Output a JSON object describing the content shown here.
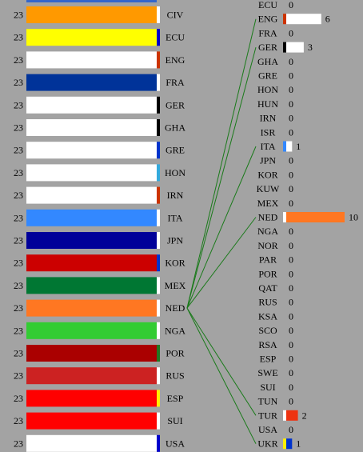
{
  "chart_data": {
    "type": "bar",
    "left_panel": {
      "value": 23,
      "rows": [
        {
          "label": "CIV",
          "fill": "#ff9900",
          "stripe": "#ffffff"
        },
        {
          "label": "ECU",
          "fill": "#ffff00",
          "stripe": "#0000cc"
        },
        {
          "label": "ENG",
          "fill": "#ffffff",
          "stripe": "#cc3300"
        },
        {
          "label": "FRA",
          "fill": "#003399",
          "stripe": "#ffffff"
        },
        {
          "label": "GER",
          "fill": "#ffffff",
          "stripe": "#000000"
        },
        {
          "label": "GHA",
          "fill": "#ffffff",
          "stripe": "#000000"
        },
        {
          "label": "GRE",
          "fill": "#ffffff",
          "stripe": "#0033cc"
        },
        {
          "label": "HON",
          "fill": "#ffffff",
          "stripe": "#33aadd"
        },
        {
          "label": "IRN",
          "fill": "#ffffff",
          "stripe": "#cc3300"
        },
        {
          "label": "ITA",
          "fill": "#3388ff",
          "stripe": "#ffffff"
        },
        {
          "label": "JPN",
          "fill": "#000099",
          "stripe": "#ffffff"
        },
        {
          "label": "KOR",
          "fill": "#cc0000",
          "stripe": "#0033cc"
        },
        {
          "label": "MEX",
          "fill": "#007733",
          "stripe": "#ffffff"
        },
        {
          "label": "NED",
          "fill": "#ff7722",
          "stripe": "#ffffff"
        },
        {
          "label": "NGA",
          "fill": "#33cc33",
          "stripe": "#ffffff"
        },
        {
          "label": "POR",
          "fill": "#aa0000",
          "stripe": "#227722"
        },
        {
          "label": "RUS",
          "fill": "#cc2222",
          "stripe": "#ffffff"
        },
        {
          "label": "ESP",
          "fill": "#ff0000",
          "stripe": "#ffee00"
        },
        {
          "label": "SUI",
          "fill": "#ff0000",
          "stripe": "#ffffff"
        },
        {
          "label": "USA",
          "fill": "#ffffff",
          "stripe": "#0000cc"
        }
      ]
    },
    "selected": "NED",
    "right_panel": {
      "rows": [
        {
          "label": "ECU",
          "value": 0,
          "fill": "#ffff00",
          "stripe": "#0000cc"
        },
        {
          "label": "ENG",
          "value": 6,
          "fill": "#ffffff",
          "stripe": "#cc3300"
        },
        {
          "label": "FRA",
          "value": 0,
          "fill": "#003399",
          "stripe": "#ffffff"
        },
        {
          "label": "GER",
          "value": 3,
          "fill": "#ffffff",
          "stripe": "#000000"
        },
        {
          "label": "GHA",
          "value": 0,
          "fill": "#ffffff",
          "stripe": "#000000"
        },
        {
          "label": "GRE",
          "value": 0,
          "fill": "#ffffff",
          "stripe": "#0033cc"
        },
        {
          "label": "HON",
          "value": 0,
          "fill": "#ffffff",
          "stripe": "#33aadd"
        },
        {
          "label": "HUN",
          "value": 0,
          "fill": "#ffffff",
          "stripe": "#cc0000"
        },
        {
          "label": "IRN",
          "value": 0,
          "fill": "#ffffff",
          "stripe": "#cc3300"
        },
        {
          "label": "ISR",
          "value": 0,
          "fill": "#ffffff",
          "stripe": "#0033cc"
        },
        {
          "label": "ITA",
          "value": 1,
          "fill": "#ffffff",
          "stripe": "#3388ff"
        },
        {
          "label": "JPN",
          "value": 0,
          "fill": "#000099",
          "stripe": "#ffffff"
        },
        {
          "label": "KOR",
          "value": 0,
          "fill": "#cc0000",
          "stripe": "#0033cc"
        },
        {
          "label": "KUW",
          "value": 0,
          "fill": "#ffffff",
          "stripe": "#007733"
        },
        {
          "label": "MEX",
          "value": 0,
          "fill": "#007733",
          "stripe": "#ffffff"
        },
        {
          "label": "NED",
          "value": 10,
          "fill": "#ff7722",
          "stripe": "#ffffff"
        },
        {
          "label": "NGA",
          "value": 0,
          "fill": "#33cc33",
          "stripe": "#ffffff"
        },
        {
          "label": "NOR",
          "value": 0,
          "fill": "#ffffff",
          "stripe": "#cc0000"
        },
        {
          "label": "PAR",
          "value": 0,
          "fill": "#ffffff",
          "stripe": "#cc0000"
        },
        {
          "label": "POR",
          "value": 0,
          "fill": "#aa0000",
          "stripe": "#227722"
        },
        {
          "label": "QAT",
          "value": 0,
          "fill": "#ffffff",
          "stripe": "#880033"
        },
        {
          "label": "RUS",
          "value": 0,
          "fill": "#cc2222",
          "stripe": "#ffffff"
        },
        {
          "label": "KSA",
          "value": 0,
          "fill": "#ffffff",
          "stripe": "#007733"
        },
        {
          "label": "SCO",
          "value": 0,
          "fill": "#ffffff",
          "stripe": "#0033cc"
        },
        {
          "label": "RSA",
          "value": 0,
          "fill": "#ffffff",
          "stripe": "#007733"
        },
        {
          "label": "ESP",
          "value": 0,
          "fill": "#ff0000",
          "stripe": "#ffee00"
        },
        {
          "label": "SWE",
          "value": 0,
          "fill": "#ffffff",
          "stripe": "#0033cc"
        },
        {
          "label": "SUI",
          "value": 0,
          "fill": "#ff0000",
          "stripe": "#ffffff"
        },
        {
          "label": "TUN",
          "value": 0,
          "fill": "#ffffff",
          "stripe": "#cc0000"
        },
        {
          "label": "TUR",
          "value": 2,
          "fill": "#ee3311",
          "stripe": "#ffffff"
        },
        {
          "label": "USA",
          "value": 0,
          "fill": "#ffffff",
          "stripe": "#0000cc"
        },
        {
          "label": "UKR",
          "value": 1,
          "fill": "#0033cc",
          "stripe": "#ffee00"
        }
      ]
    },
    "links_to": [
      "ENG",
      "GER",
      "ITA",
      "NED",
      "TUR",
      "UKR"
    ],
    "line_color": "#1a7a1a"
  }
}
